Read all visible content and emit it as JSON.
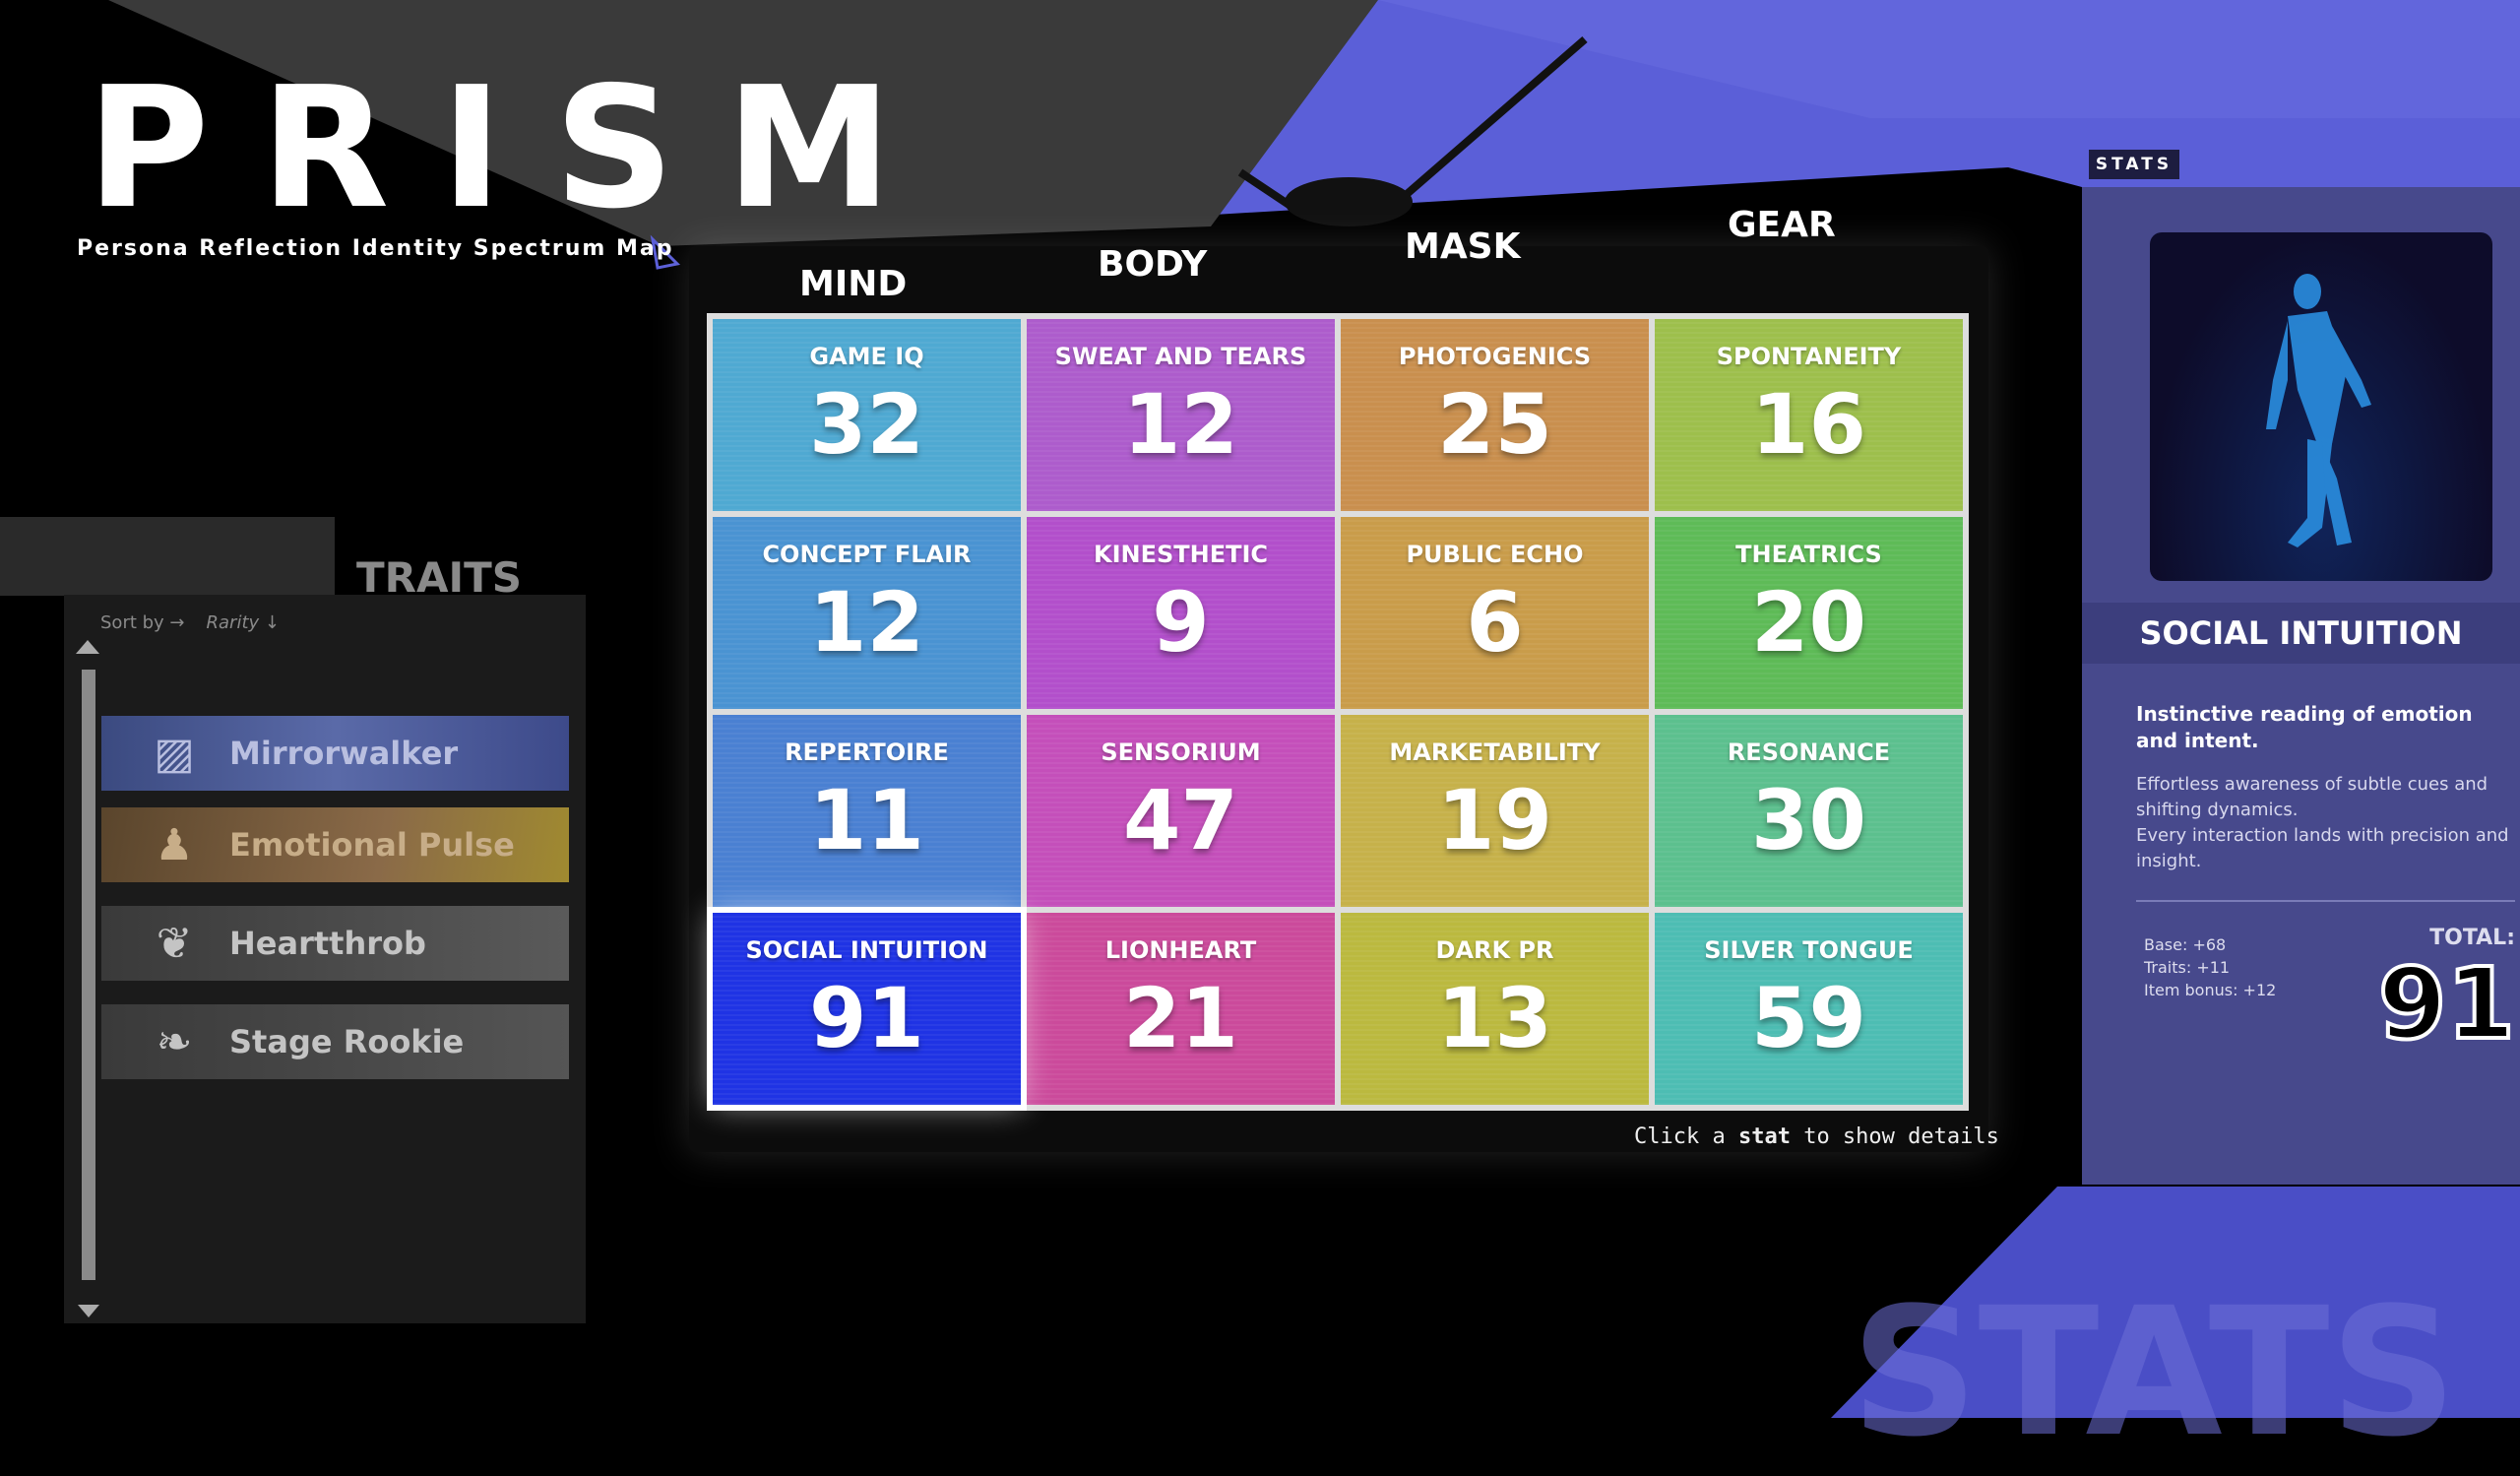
{
  "app": {
    "title": "PRISM",
    "subtitle": "Persona Reflection Identity Spectrum Map"
  },
  "board": {
    "columns": [
      "MIND",
      "BODY",
      "MASK",
      "GEAR"
    ],
    "hint_pre": "Click a ",
    "hint_bold": "stat",
    "hint_post": " to show details",
    "cells": [
      {
        "label": "GAME IQ",
        "value": "32",
        "color": "#4fa9d2"
      },
      {
        "label": "SWEAT AND TEARS",
        "value": "12",
        "color": "#ad5ccc"
      },
      {
        "label": "PHOTOGENICS",
        "value": "25",
        "color": "#c98f4e"
      },
      {
        "label": "SPONTANEITY",
        "value": "16",
        "color": "#9dbf4c"
      },
      {
        "label": "CONCEPT FLAIR",
        "value": "12",
        "color": "#4a93d2"
      },
      {
        "label": "KINESTHETIC",
        "value": "9",
        "color": "#b24fcb"
      },
      {
        "label": "PUBLIC ECHO",
        "value": "6",
        "color": "#c99c4a"
      },
      {
        "label": "THEATRICS",
        "value": "20",
        "color": "#5ebb57"
      },
      {
        "label": "REPERTOIRE",
        "value": "11",
        "color": "#4a80d2"
      },
      {
        "label": "SENSORIUM",
        "value": "47",
        "color": "#c44fba"
      },
      {
        "label": "MARKETABILITY",
        "value": "19",
        "color": "#c6b14a"
      },
      {
        "label": "RESONANCE",
        "value": "30",
        "color": "#5cc08e"
      },
      {
        "label": "SOCIAL INTUITION",
        "value": "91",
        "color": "#1f33e4",
        "selected": true
      },
      {
        "label": "LIONHEART",
        "value": "21",
        "color": "#cb4a9b"
      },
      {
        "label": "DARK PR",
        "value": "13",
        "color": "#bbb93f"
      },
      {
        "label": "SILVER TONGUE",
        "value": "59",
        "color": "#4dbdb3"
      }
    ]
  },
  "traits": {
    "title": "TRAITS",
    "sort_label": "Sort by →",
    "sort_value": "Rarity ↓",
    "items": [
      {
        "name": "Mirrorwalker",
        "icon": "mirror-icon",
        "glyph": "▨"
      },
      {
        "name": "Emotional Pulse",
        "icon": "person-signal-icon",
        "glyph": "♟"
      },
      {
        "name": "Heartthrob",
        "icon": "rose-icon",
        "glyph": "❦"
      },
      {
        "name": "Stage Rookie",
        "icon": "sprout-icon",
        "glyph": "❧"
      }
    ]
  },
  "details": {
    "tab": "STATS",
    "name": "SOCIAL INTUITION",
    "summary": "Instinctive reading of emotion and intent.",
    "body1": "Effortless awareness of subtle cues and shifting dynamics.",
    "body2": "Every interaction lands with precision and insight.",
    "base": "Base: +68",
    "traits": "Traits: +11",
    "item": "Item bonus: +12",
    "total_label": "TOTAL:",
    "total": "91"
  },
  "watermark": "STATS",
  "colors": {
    "panel": "#47498c",
    "accent": "#5b5fd8",
    "selected": "#1f33e4"
  }
}
